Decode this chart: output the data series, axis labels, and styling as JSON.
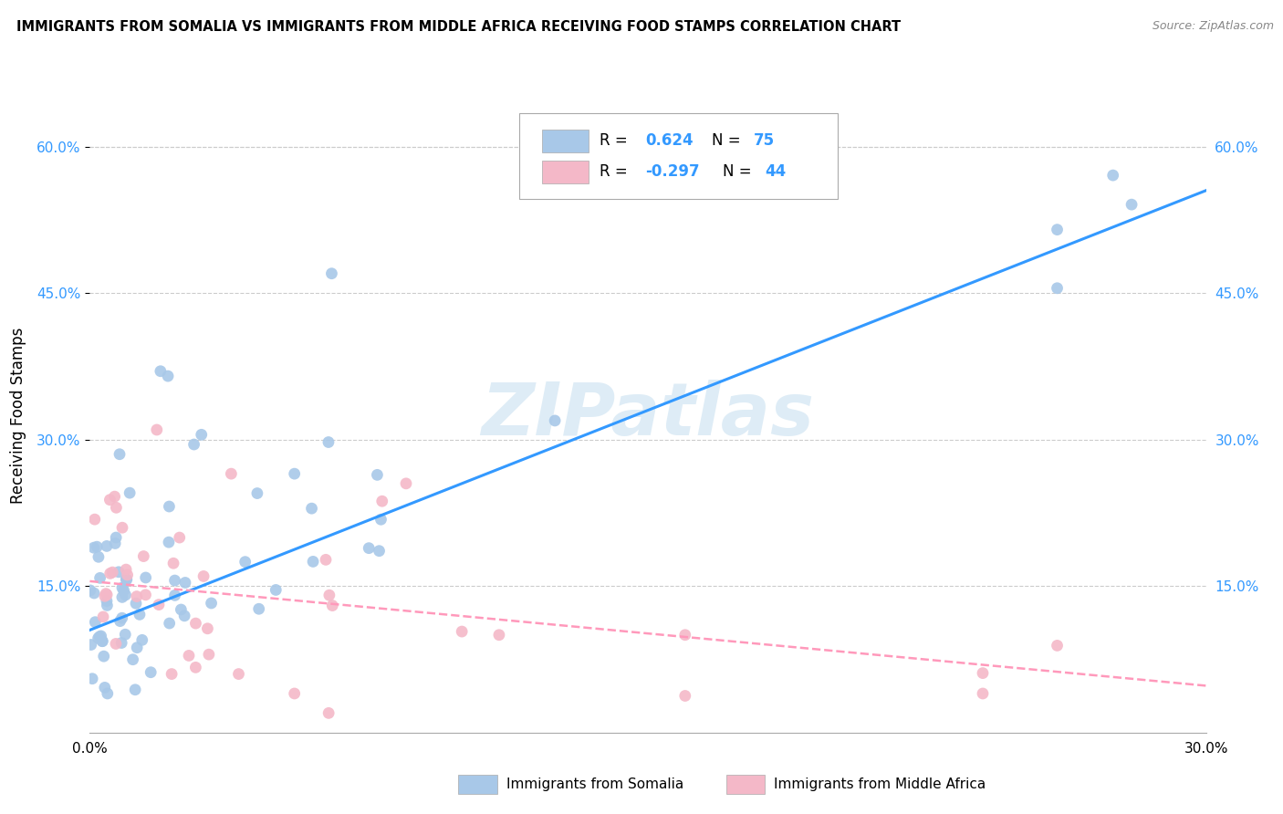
{
  "title": "IMMIGRANTS FROM SOMALIA VS IMMIGRANTS FROM MIDDLE AFRICA RECEIVING FOOD STAMPS CORRELATION CHART",
  "source": "Source: ZipAtlas.com",
  "ylabel": "Receiving Food Stamps",
  "ytick_vals": [
    0.15,
    0.3,
    0.45,
    0.6
  ],
  "ytick_labels": [
    "15.0%",
    "30.0%",
    "45.0%",
    "60.0%"
  ],
  "xlim": [
    0.0,
    0.3
  ],
  "ylim": [
    0.0,
    0.65
  ],
  "somalia_color": "#a8c8e8",
  "middle_africa_color": "#f4b8c8",
  "somalia_line_color": "#3399ff",
  "middle_africa_line_color": "#ff99bb",
  "watermark": "ZIPatlas",
  "legend_label_somalia": "Immigrants from Somalia",
  "legend_label_middle_africa": "Immigrants from Middle Africa",
  "somalia_line_x0": 0.0,
  "somalia_line_y0": 0.105,
  "somalia_line_x1": 0.3,
  "somalia_line_y1": 0.555,
  "middle_africa_line_x0": 0.0,
  "middle_africa_line_y0": 0.155,
  "middle_africa_line_x1": 0.3,
  "middle_africa_line_y1": 0.048
}
